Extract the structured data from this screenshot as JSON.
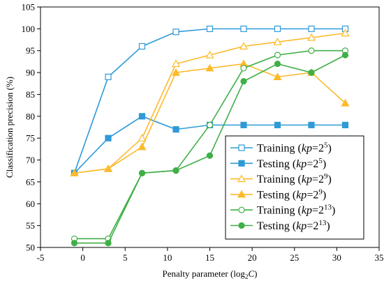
{
  "chart_data": {
    "type": "line",
    "xlabel": "Penalty parameter (log₂C)",
    "ylabel": "Classification precision (%)",
    "xlim": [
      -5,
      35
    ],
    "ylim": [
      50,
      105
    ],
    "xticks": [
      -5,
      0,
      5,
      10,
      15,
      20,
      25,
      30,
      35
    ],
    "yticks": [
      50,
      55,
      60,
      65,
      70,
      75,
      80,
      85,
      90,
      95,
      100,
      105
    ],
    "xtick_labels": [
      "-5",
      "0",
      "5",
      "10",
      "15",
      "20",
      "25",
      "30",
      "35"
    ],
    "ytick_labels": [
      "50",
      "55",
      "60",
      "65",
      "70",
      "75",
      "80",
      "85",
      "90",
      "95",
      "100",
      "105"
    ],
    "grid": false,
    "legend_position": "bottom-right",
    "x": [
      -1,
      3,
      7,
      11,
      15,
      19,
      23,
      27,
      31
    ],
    "series": [
      {
        "name": "Training (kp=2⁵)",
        "legend_main": "Training (",
        "legend_italic": "kp",
        "legend_eq": "=2",
        "legend_sup": "5",
        "legend_close": ")",
        "color": "#2E9AD6",
        "marker": "square",
        "filled": false,
        "values": [
          67,
          89,
          96,
          99.3,
          100,
          100,
          100,
          100,
          100
        ]
      },
      {
        "name": "Testing (kp=2⁵)",
        "legend_main": "Testing (",
        "legend_italic": "kp",
        "legend_eq": "=2",
        "legend_sup": "5",
        "legend_close": ")",
        "color": "#2E9AD6",
        "marker": "square",
        "filled": true,
        "values": [
          67,
          75,
          80,
          77,
          78,
          78,
          78,
          78,
          78
        ]
      },
      {
        "name": "Training (kp=2⁹)",
        "legend_main": "Training (",
        "legend_italic": "kp",
        "legend_eq": "=2",
        "legend_sup": "9",
        "legend_close": ")",
        "color": "#FDBA2C",
        "marker": "triangle",
        "filled": false,
        "values": [
          67,
          68,
          75,
          92,
          94,
          96,
          97,
          98,
          99
        ]
      },
      {
        "name": "Testing (kp=2⁹)",
        "legend_main": "Testing (",
        "legend_italic": "kp",
        "legend_eq": "=2",
        "legend_sup": "9",
        "legend_close": ")",
        "color": "#FDBA2C",
        "marker": "triangle",
        "filled": true,
        "values": [
          67,
          68,
          73,
          90,
          91,
          92,
          89,
          90,
          83
        ]
      },
      {
        "name": "Training (kp=2¹³)",
        "legend_main": "Training (",
        "legend_italic": "kp",
        "legend_eq": "=2",
        "legend_sup": "13",
        "legend_close": ")",
        "color": "#3FAF46",
        "marker": "circle",
        "filled": false,
        "values": [
          52,
          52,
          67,
          67.6,
          78,
          91,
          94,
          95,
          95
        ]
      },
      {
        "name": "Testing (kp=2¹³)",
        "legend_main": "Testing (",
        "legend_italic": "kp",
        "legend_eq": "=2",
        "legend_sup": "13",
        "legend_close": ")",
        "color": "#3FAF46",
        "marker": "circle",
        "filled": true,
        "values": [
          51,
          51,
          67,
          67.6,
          71,
          88,
          92,
          90,
          94
        ]
      }
    ]
  }
}
